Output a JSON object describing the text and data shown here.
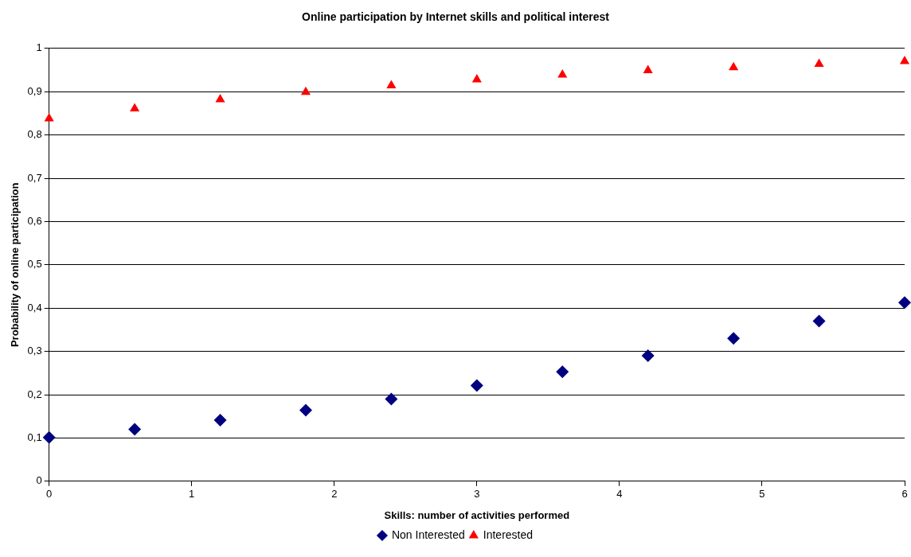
{
  "chart_data": {
    "type": "scatter",
    "title": "Online participation by Internet skills and political interest",
    "xlabel": "Skills: number of activities performed",
    "ylabel": "Probability of online participation",
    "x": [
      0,
      0.6,
      1.2,
      1.8,
      2.4,
      3.0,
      3.6,
      4.2,
      4.8,
      5.4,
      6
    ],
    "series": [
      {
        "name": "Non Interested",
        "color": "#000080",
        "marker": "diamond",
        "values": [
          0.101,
          0.12,
          0.141,
          0.164,
          0.19,
          0.221,
          0.253,
          0.29,
          0.33,
          0.37,
          0.413
        ]
      },
      {
        "name": "Interested",
        "color": "#ff0000",
        "marker": "triangle",
        "values": [
          0.838,
          0.861,
          0.882,
          0.899,
          0.914,
          0.928,
          0.939,
          0.949,
          0.956,
          0.964,
          0.97
        ]
      }
    ],
    "xlim": [
      0,
      6
    ],
    "xticks": [
      0,
      1,
      2,
      3,
      4,
      5,
      6
    ],
    "ylim": [
      0,
      1
    ],
    "yticks": [
      0,
      {
        "value": 0.1,
        "label": "0,1"
      },
      {
        "value": 0.2,
        "label": "0,2"
      },
      {
        "value": 0.3,
        "label": "0,3"
      },
      {
        "value": 0.4,
        "label": "0,4"
      },
      {
        "value": 0.5,
        "label": "0,5"
      },
      {
        "value": 0.6,
        "label": "0,6"
      },
      {
        "value": 0.7,
        "label": "0,7"
      },
      {
        "value": 0.8,
        "label": "0,8"
      },
      {
        "value": 0.9,
        "label": "0,9"
      },
      1
    ],
    "grid": "y",
    "legend": "bottom"
  }
}
